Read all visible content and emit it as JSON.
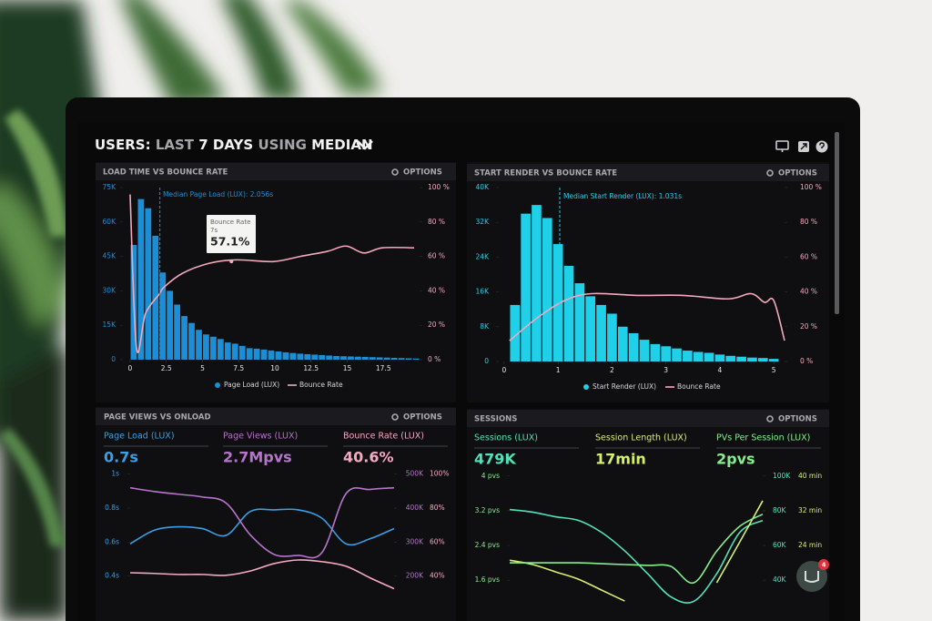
{
  "header": {
    "title": [
      "USERS:",
      "LAST",
      "7 DAYS",
      "USING",
      "MEDIAN"
    ]
  },
  "widget": {
    "badge": "4"
  },
  "chart_data": [
    {
      "type": "histogram",
      "title": "LOAD TIME VS BOUNCE RATE",
      "options": "OPTIONS",
      "bins": [
        0,
        0.5,
        1,
        1.5,
        2,
        2.5,
        3,
        3.5,
        4,
        4.5,
        5,
        5.5,
        6,
        6.5,
        7,
        7.5,
        8,
        8.5,
        9,
        9.5,
        10,
        10.5,
        11,
        11.5,
        12,
        12.5,
        13,
        13.5,
        14,
        14.5,
        15,
        15.5,
        16,
        16.5,
        17,
        17.5,
        18,
        18.5,
        19,
        19.5,
        20
      ],
      "series": [
        {
          "name": "Page Load (LUX)",
          "color": "#1a8fd8",
          "values": [
            50000,
            70000,
            66000,
            54000,
            38000,
            30000,
            24000,
            19000,
            16000,
            13000,
            11000,
            10000,
            9000,
            7500,
            7000,
            6000,
            5000,
            4800,
            4400,
            4000,
            3600,
            3200,
            2900,
            2600,
            2400,
            2200,
            2000,
            1800,
            1600,
            1500,
            1400,
            1300,
            1200,
            1100,
            1000,
            900,
            800,
            700,
            600,
            500
          ]
        },
        {
          "name": "Bounce Rate",
          "color": "#f4a9bb",
          "axis": "y2",
          "x": [
            0,
            0.44,
            1.07,
            2.01,
            2.33,
            3.58,
            5.47,
            7.36,
            9.87,
            11.76,
            13.65,
            14.91,
            16.16,
            17.42,
            19.62
          ],
          "values": [
            96,
            7,
            27,
            38,
            42,
            50,
            56,
            58,
            57,
            60,
            63,
            66,
            62,
            65,
            65
          ]
        }
      ],
      "xlim": [
        -0.5,
        20
      ],
      "xticks": [
        0,
        2.5,
        5,
        7.5,
        10,
        12.5,
        15,
        17.5
      ],
      "ylim": [
        0,
        75000
      ],
      "yticks": [
        0,
        {
          "value": 15000,
          "label": "15K"
        },
        {
          "value": 30000,
          "label": "30K"
        },
        {
          "value": 45000,
          "label": "45K"
        },
        {
          "value": 60000,
          "label": "60K"
        },
        {
          "value": 75000,
          "label": "75K"
        }
      ],
      "y2lim": [
        0,
        100
      ],
      "y2ticks": [
        {
          "value": 0,
          "label": "0 %"
        },
        {
          "value": 20,
          "label": "20 %"
        },
        {
          "value": 40,
          "label": "40 %"
        },
        {
          "value": 60,
          "label": "60 %"
        },
        {
          "value": 80,
          "label": "80 %"
        },
        {
          "value": 100,
          "label": "100 %"
        }
      ],
      "annotation": {
        "text": "Median Page Load (LUX): 2.056s",
        "x": 2.056
      },
      "tooltip": {
        "title": "Bounce Rate",
        "x": {
          "value": 7,
          "label": "7s"
        },
        "value": {
          "value": 57.1,
          "label": "57.1%"
        }
      }
    },
    {
      "type": "histogram",
      "title": "START RENDER VS BOUNCE RATE",
      "options": "OPTIONS",
      "bins": [
        0.1,
        0.3,
        0.5,
        0.7,
        0.9,
        1.1,
        1.3,
        1.5,
        1.7,
        1.9,
        2.1,
        2.3,
        2.5,
        2.7,
        2.9,
        3.1,
        3.3,
        3.5,
        3.7,
        3.9,
        4.1,
        4.3,
        4.5,
        4.7,
        4.9,
        5.1
      ],
      "series": [
        {
          "name": "Start Render (LUX)",
          "color": "#1fd0e8",
          "values": [
            13000,
            34000,
            36000,
            33000,
            27000,
            22000,
            18000,
            15000,
            13000,
            11000,
            8000,
            6500,
            5000,
            4000,
            3500,
            3000,
            2500,
            2200,
            2000,
            1600,
            1300,
            1100,
            900,
            800,
            600
          ]
        },
        {
          "name": "Bounce Rate",
          "color": "#f4a9bb",
          "axis": "y2",
          "x": [
            0.1,
            0.61,
            1.12,
            1.62,
            2.47,
            3.31,
            4.16,
            4.58,
            4.83,
            5.0,
            5.2
          ],
          "values": [
            12,
            25,
            35,
            39,
            38,
            38,
            36,
            39,
            34,
            35,
            12
          ]
        }
      ],
      "xlim": [
        -0.1,
        5.2
      ],
      "xticks": [
        0,
        1,
        2,
        3,
        4,
        5
      ],
      "ylim": [
        0,
        40000
      ],
      "yticks": [
        0,
        {
          "value": 8000,
          "label": "8K"
        },
        {
          "value": 16000,
          "label": "16K"
        },
        {
          "value": 24000,
          "label": "24K"
        },
        {
          "value": 32000,
          "label": "32K"
        },
        {
          "value": 40000,
          "label": "40K"
        }
      ],
      "y2lim": [
        0,
        100
      ],
      "y2ticks": [
        {
          "value": 0,
          "label": "0 %"
        },
        {
          "value": 20,
          "label": "20 %"
        },
        {
          "value": 40,
          "label": "40 %"
        },
        {
          "value": 60,
          "label": "60 %"
        },
        {
          "value": 80,
          "label": "80 %"
        },
        {
          "value": 100,
          "label": "100 %"
        }
      ],
      "annotation": {
        "text": "Median Start Render (LUX): 1.031s",
        "x": 1.031
      }
    },
    {
      "type": "line",
      "title": "PAGE VIEWS VS ONLOAD",
      "options": "OPTIONS",
      "series": [
        {
          "name": "Page Load (LUX)",
          "summary": "0.7s",
          "color": "#3a9fe4",
          "axis": "y",
          "values": [
            0.59,
            0.67,
            0.69,
            0.68,
            0.64,
            0.78,
            0.79,
            0.79,
            0.74,
            0.59,
            0.62,
            0.68
          ]
        },
        {
          "name": "Page Views (LUX)",
          "summary": "2.7Mpvs",
          "color": "#b774cc",
          "axis": "y2",
          "values": [
            460,
            449,
            441,
            433,
            415,
            322,
            264,
            261,
            270,
            443,
            455,
            460
          ]
        },
        {
          "name": "Bounce Rate (LUX)",
          "summary": "40.6%",
          "color": "#f7a9c2",
          "axis": "y3",
          "values": [
            42,
            41.6,
            41,
            41,
            40.5,
            43,
            47.4,
            49.5,
            48.5,
            45.8,
            39,
            32.6
          ]
        }
      ],
      "ylim": [
        0.27,
        1.02
      ],
      "yticks": [
        {
          "value": 0.4,
          "label": "0.4s"
        },
        {
          "value": 0.6,
          "label": "0.6s"
        },
        {
          "value": 0.8,
          "label": "0.8s"
        },
        {
          "value": 1,
          "label": "1s"
        }
      ],
      "y2lim": [
        135,
        510
      ],
      "y2ticks": [
        {
          "value": 200,
          "label": "200K"
        },
        {
          "value": 300,
          "label": "300K"
        },
        {
          "value": 400,
          "label": "400K"
        },
        {
          "value": 500,
          "label": "500K"
        }
      ],
      "y3lim": [
        27,
        102
      ],
      "y3ticks": [
        {
          "value": 40,
          "label": "40%"
        },
        {
          "value": 60,
          "label": "60%"
        },
        {
          "value": 80,
          "label": "80%"
        },
        {
          "value": 100,
          "label": "100%"
        }
      ]
    },
    {
      "type": "line",
      "title": "SESSIONS",
      "options": "OPTIONS",
      "series": [
        {
          "name": "Sessions (LUX)",
          "summary": "479K",
          "color": "#52e2b6",
          "axis": "y2",
          "values": [
            80.7,
            79.2,
            76.5,
            74.4,
            67.5,
            56.9,
            43.7,
            30.5,
            27.8,
            43.7,
            67.5,
            74.4
          ]
        },
        {
          "name": "Session Length (LUX)",
          "summary": "17min",
          "color": "#d6f06e",
          "axis": "y3",
          "values": [
            20.6,
            19.6,
            17.9,
            16.2,
            13.7,
            11.2,
            null,
            null,
            null,
            15.4,
            24.8,
            34.3
          ]
        },
        {
          "name": "PVs Per Session (LUX)",
          "summary": "2pvs",
          "color": "#86ee8e",
          "axis": "y",
          "values": [
            2.0,
            2.0,
            2.0,
            2.0,
            1.98,
            1.96,
            1.94,
            1.92,
            1.54,
            2.27,
            2.84,
            3.12
          ]
        }
      ],
      "ylim": [
        1.1,
        4.1
      ],
      "yticks": [
        {
          "value": 1.6,
          "label": "1.6 pvs"
        },
        {
          "value": 2.4,
          "label": "2.4 pvs"
        },
        {
          "value": 3.2,
          "label": "3.2 pvs"
        },
        {
          "value": 4,
          "label": "4 pvs"
        }
      ],
      "y2lim": [
        27.5,
        102.5
      ],
      "y2ticks": [
        {
          "value": 40,
          "label": "40K"
        },
        {
          "value": 60,
          "label": "60K"
        },
        {
          "value": 80,
          "label": "80K"
        },
        {
          "value": 100,
          "label": "100K"
        }
      ],
      "y3lim": [
        11,
        41
      ],
      "y3ticks": [
        {
          "value": 16,
          "label": "16 min"
        },
        {
          "value": 24,
          "label": "24 min"
        },
        {
          "value": 32,
          "label": "32 min"
        },
        {
          "value": 40,
          "label": "40 min"
        }
      ]
    }
  ]
}
